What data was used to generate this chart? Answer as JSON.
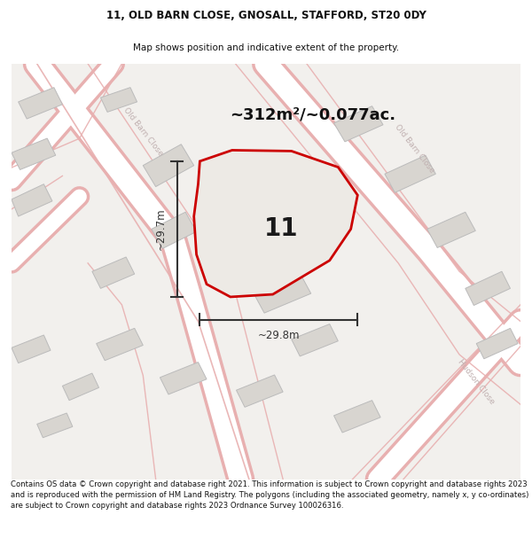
{
  "title_line1": "11, OLD BARN CLOSE, GNOSALL, STAFFORD, ST20 0DY",
  "title_line2": "Map shows position and indicative extent of the property.",
  "area_label": "~312m²/~0.077ac.",
  "plot_number": "11",
  "dim_height": "~29.7m",
  "dim_width": "~29.8m",
  "footer": "Contains OS data © Crown copyright and database right 2021. This information is subject to Crown copyright and database rights 2023 and is reproduced with the permission of HM Land Registry. The polygons (including the associated geometry, namely x, y co-ordinates) are subject to Crown copyright and database rights 2023 Ordnance Survey 100026316.",
  "map_bg": "#f2f0ed",
  "road_outline_color": "#e8b0b0",
  "road_fill_color": "#ffffff",
  "building_fill": "#d8d5d0",
  "building_edge": "#bbbbbb",
  "plot_fill": "#edeae5",
  "plot_edge": "#cc0000",
  "dim_color": "#333333",
  "road_label_color": "#c0b0b0",
  "text_color": "#111111"
}
